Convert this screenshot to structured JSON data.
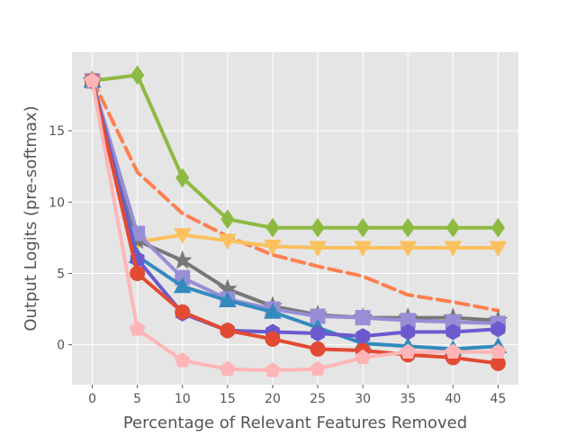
{
  "chart_data": {
    "type": "line",
    "title": "",
    "xlabel": "Percentage of Relevant Features Removed",
    "ylabel": "Output Logits (pre-softmax)",
    "x": [
      0,
      5,
      10,
      15,
      20,
      25,
      30,
      35,
      40,
      45
    ],
    "xlim": [
      -2.25,
      47.25
    ],
    "ylim": [
      -2.8,
      20.5
    ],
    "xticks": [
      "0",
      "5",
      "10",
      "15",
      "20",
      "25",
      "30",
      "35",
      "40",
      "45"
    ],
    "yticks": [
      0,
      5,
      10,
      15
    ],
    "ytick_labels": [
      "0",
      "5",
      "10",
      "15"
    ],
    "grid": true,
    "background": "#E5E5E5",
    "legend": "none",
    "series": [
      {
        "color": "#8EBA42",
        "marker": "diamond",
        "dash": false,
        "values": [
          18.5,
          18.9,
          11.7,
          8.8,
          8.2,
          8.2,
          8.2,
          8.2,
          8.2,
          8.2
        ]
      },
      {
        "color": "#FF7F50",
        "marker": "none",
        "dash": true,
        "values": [
          18.6,
          12.1,
          9.2,
          7.6,
          6.3,
          5.5,
          4.8,
          3.5,
          3.0,
          2.4
        ]
      },
      {
        "color": "#FBC15E",
        "marker": "triangle-down",
        "dash": false,
        "values": [
          18.5,
          7.2,
          7.7,
          7.3,
          6.9,
          6.8,
          6.8,
          6.8,
          6.8,
          6.8
        ]
      },
      {
        "color": "#777777",
        "marker": "star",
        "dash": false,
        "values": [
          18.5,
          7.3,
          5.9,
          3.9,
          2.7,
          2.1,
          1.9,
          1.9,
          1.9,
          1.7
        ]
      },
      {
        "color": "#988ED5",
        "marker": "square",
        "dash": false,
        "values": [
          18.5,
          7.8,
          4.7,
          3.2,
          2.5,
          2.0,
          1.9,
          1.7,
          1.6,
          1.5
        ]
      },
      {
        "color": "#348ABD",
        "marker": "triangle-up",
        "dash": false,
        "values": [
          18.5,
          6.2,
          4.1,
          3.1,
          2.3,
          1.2,
          0.1,
          -0.1,
          -0.3,
          -0.1
        ]
      },
      {
        "color": "#6A5ACD",
        "marker": "hexagon",
        "dash": false,
        "values": [
          18.5,
          6.0,
          2.2,
          1.0,
          0.9,
          0.8,
          0.6,
          0.9,
          0.9,
          1.1
        ]
      },
      {
        "color": "#E24A33",
        "marker": "circle",
        "dash": false,
        "values": [
          18.5,
          5.0,
          2.3,
          1.0,
          0.4,
          -0.3,
          -0.4,
          -0.7,
          -0.9,
          -1.3
        ]
      },
      {
        "color": "#FFB5B8",
        "marker": "pentagon",
        "dash": false,
        "values": [
          18.5,
          1.1,
          -1.1,
          -1.7,
          -1.8,
          -1.7,
          -0.9,
          -0.5,
          -0.5,
          -0.5
        ]
      }
    ]
  }
}
